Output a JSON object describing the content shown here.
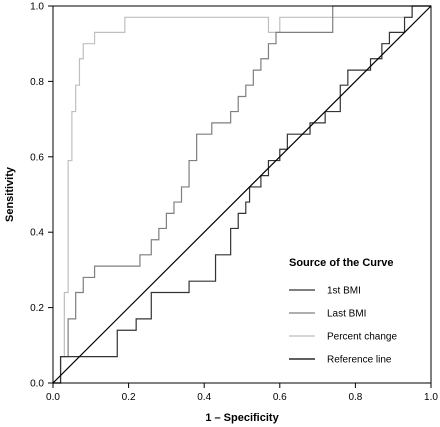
{
  "chart_data": {
    "type": "line",
    "xlabel": "1 – Specificity",
    "ylabel": "Sensitivity",
    "xlim": [
      0,
      1
    ],
    "ylim": [
      0,
      1
    ],
    "xticks": [
      0.0,
      0.2,
      0.4,
      0.6,
      0.8,
      1.0
    ],
    "yticks": [
      0.0,
      0.2,
      0.4,
      0.6,
      0.8,
      1.0
    ],
    "xtick_labels": [
      "0.0",
      "0.2",
      "0.4",
      "0.6",
      "0.8",
      "1.0"
    ],
    "ytick_labels": [
      "0.0",
      "0.2",
      "0.4",
      "0.6",
      "0.8",
      "1.0"
    ],
    "grid": false,
    "legend": {
      "title": "Source of the Curve",
      "position": "bottom-right"
    },
    "series": [
      {
        "name": "1st BMI",
        "color": "#333333",
        "x": [
          0.0,
          0.02,
          0.02,
          0.17,
          0.17,
          0.22,
          0.22,
          0.26,
          0.26,
          0.36,
          0.36,
          0.43,
          0.43,
          0.47,
          0.47,
          0.49,
          0.49,
          0.51,
          0.51,
          0.52,
          0.52,
          0.55,
          0.55,
          0.57,
          0.57,
          0.6,
          0.6,
          0.62,
          0.62,
          0.68,
          0.68,
          0.72,
          0.72,
          0.76,
          0.76,
          0.78,
          0.78,
          0.84,
          0.84,
          0.87,
          0.87,
          0.89,
          0.89,
          0.93,
          0.93,
          0.95,
          0.95,
          0.99,
          0.99,
          1.0
        ],
        "y": [
          0.0,
          0.0,
          0.07,
          0.07,
          0.14,
          0.14,
          0.17,
          0.17,
          0.24,
          0.24,
          0.27,
          0.27,
          0.34,
          0.34,
          0.41,
          0.41,
          0.45,
          0.45,
          0.48,
          0.48,
          0.52,
          0.52,
          0.55,
          0.55,
          0.59,
          0.59,
          0.62,
          0.62,
          0.66,
          0.66,
          0.69,
          0.69,
          0.72,
          0.72,
          0.79,
          0.79,
          0.83,
          0.83,
          0.86,
          0.86,
          0.9,
          0.9,
          0.93,
          0.93,
          0.97,
          0.97,
          1.0,
          1.0,
          1.0,
          1.0
        ]
      },
      {
        "name": "Last BMI",
        "color": "#7f7f7f",
        "x": [
          0.0,
          0.02,
          0.02,
          0.04,
          0.04,
          0.06,
          0.06,
          0.08,
          0.08,
          0.11,
          0.11,
          0.23,
          0.23,
          0.26,
          0.26,
          0.28,
          0.28,
          0.3,
          0.3,
          0.32,
          0.32,
          0.34,
          0.34,
          0.36,
          0.36,
          0.38,
          0.38,
          0.42,
          0.42,
          0.47,
          0.47,
          0.49,
          0.49,
          0.51,
          0.51,
          0.53,
          0.53,
          0.55,
          0.55,
          0.57,
          0.57,
          0.59,
          0.59,
          0.74,
          0.74,
          1.0
        ],
        "y": [
          0.0,
          0.0,
          0.07,
          0.07,
          0.17,
          0.17,
          0.24,
          0.24,
          0.28,
          0.28,
          0.31,
          0.31,
          0.34,
          0.34,
          0.38,
          0.38,
          0.41,
          0.41,
          0.45,
          0.45,
          0.48,
          0.48,
          0.52,
          0.52,
          0.59,
          0.59,
          0.66,
          0.66,
          0.69,
          0.69,
          0.72,
          0.72,
          0.76,
          0.76,
          0.79,
          0.79,
          0.83,
          0.83,
          0.86,
          0.86,
          0.9,
          0.9,
          0.93,
          0.93,
          1.0,
          1.0
        ]
      },
      {
        "name": "Percent change",
        "color": "#bfbfbf",
        "x": [
          0.0,
          0.02,
          0.02,
          0.03,
          0.03,
          0.04,
          0.04,
          0.05,
          0.05,
          0.06,
          0.06,
          0.07,
          0.07,
          0.08,
          0.08,
          0.11,
          0.11,
          0.19,
          0.19,
          0.57,
          0.57,
          0.6,
          0.6,
          0.95,
          0.95,
          1.0
        ],
        "y": [
          0.0,
          0.0,
          0.07,
          0.07,
          0.24,
          0.24,
          0.59,
          0.59,
          0.72,
          0.72,
          0.79,
          0.79,
          0.86,
          0.86,
          0.9,
          0.9,
          0.93,
          0.93,
          0.97,
          0.97,
          0.93,
          0.93,
          0.97,
          0.97,
          1.0,
          1.0
        ]
      },
      {
        "name": "Reference line",
        "color": "#000000",
        "x": [
          0,
          1
        ],
        "y": [
          0,
          1
        ]
      }
    ]
  }
}
